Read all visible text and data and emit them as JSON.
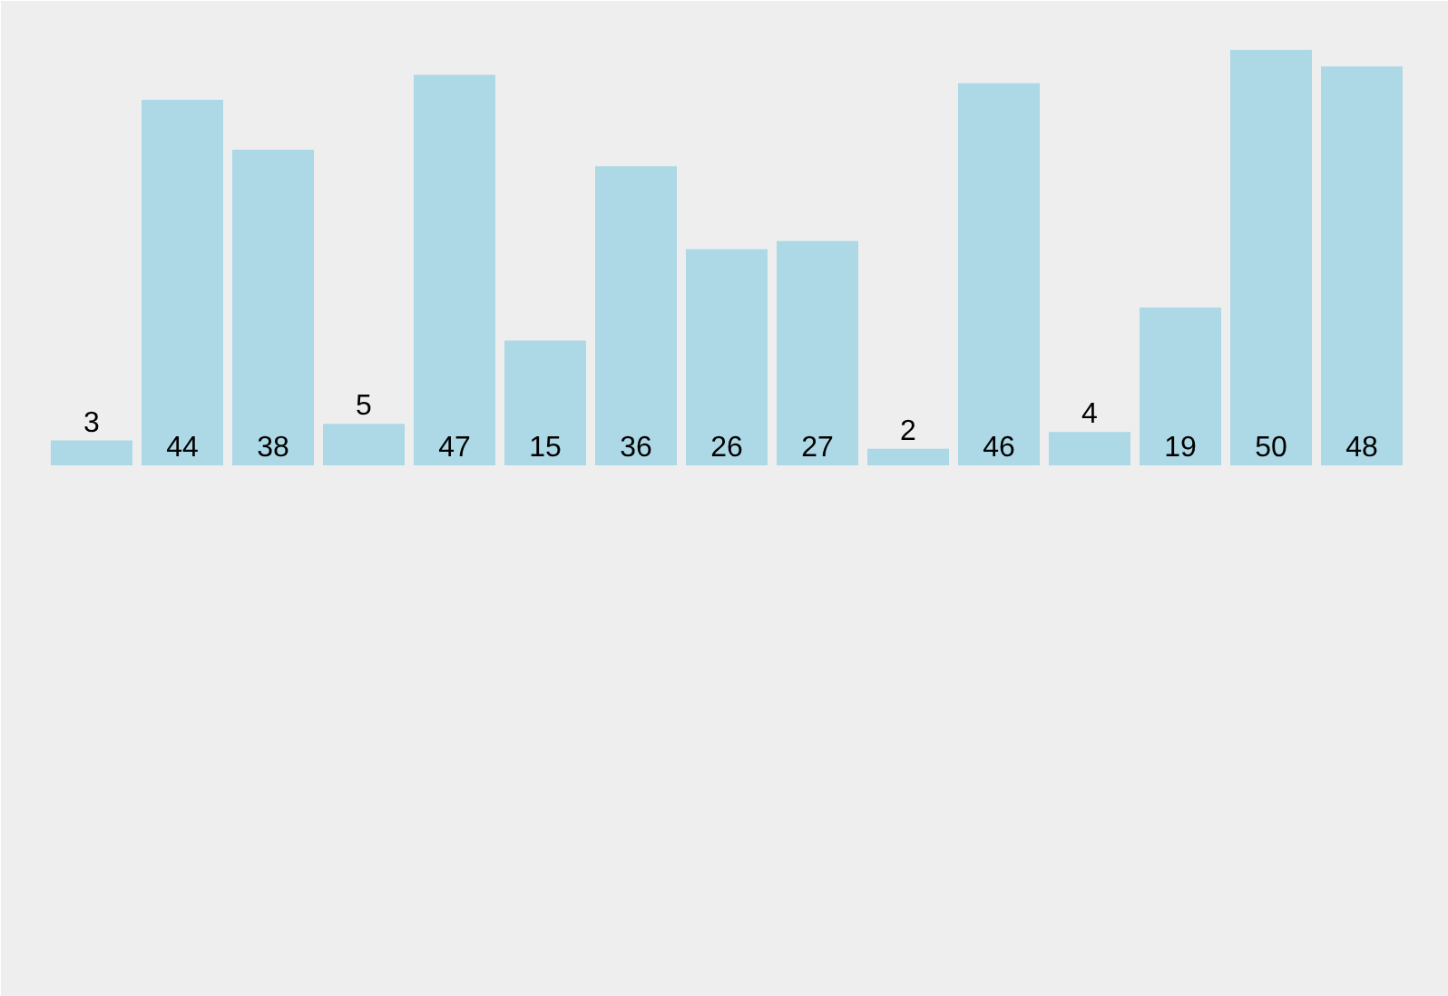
{
  "chart_data": {
    "type": "bar",
    "categories": [
      null,
      null,
      null,
      null,
      null,
      null,
      null,
      null,
      null,
      null,
      null,
      null,
      null,
      null,
      null
    ],
    "values": [
      3,
      44,
      38,
      5,
      47,
      15,
      36,
      26,
      27,
      2,
      46,
      4,
      19,
      50,
      48
    ],
    "color": "#add8e6",
    "data_labels": true
  }
}
